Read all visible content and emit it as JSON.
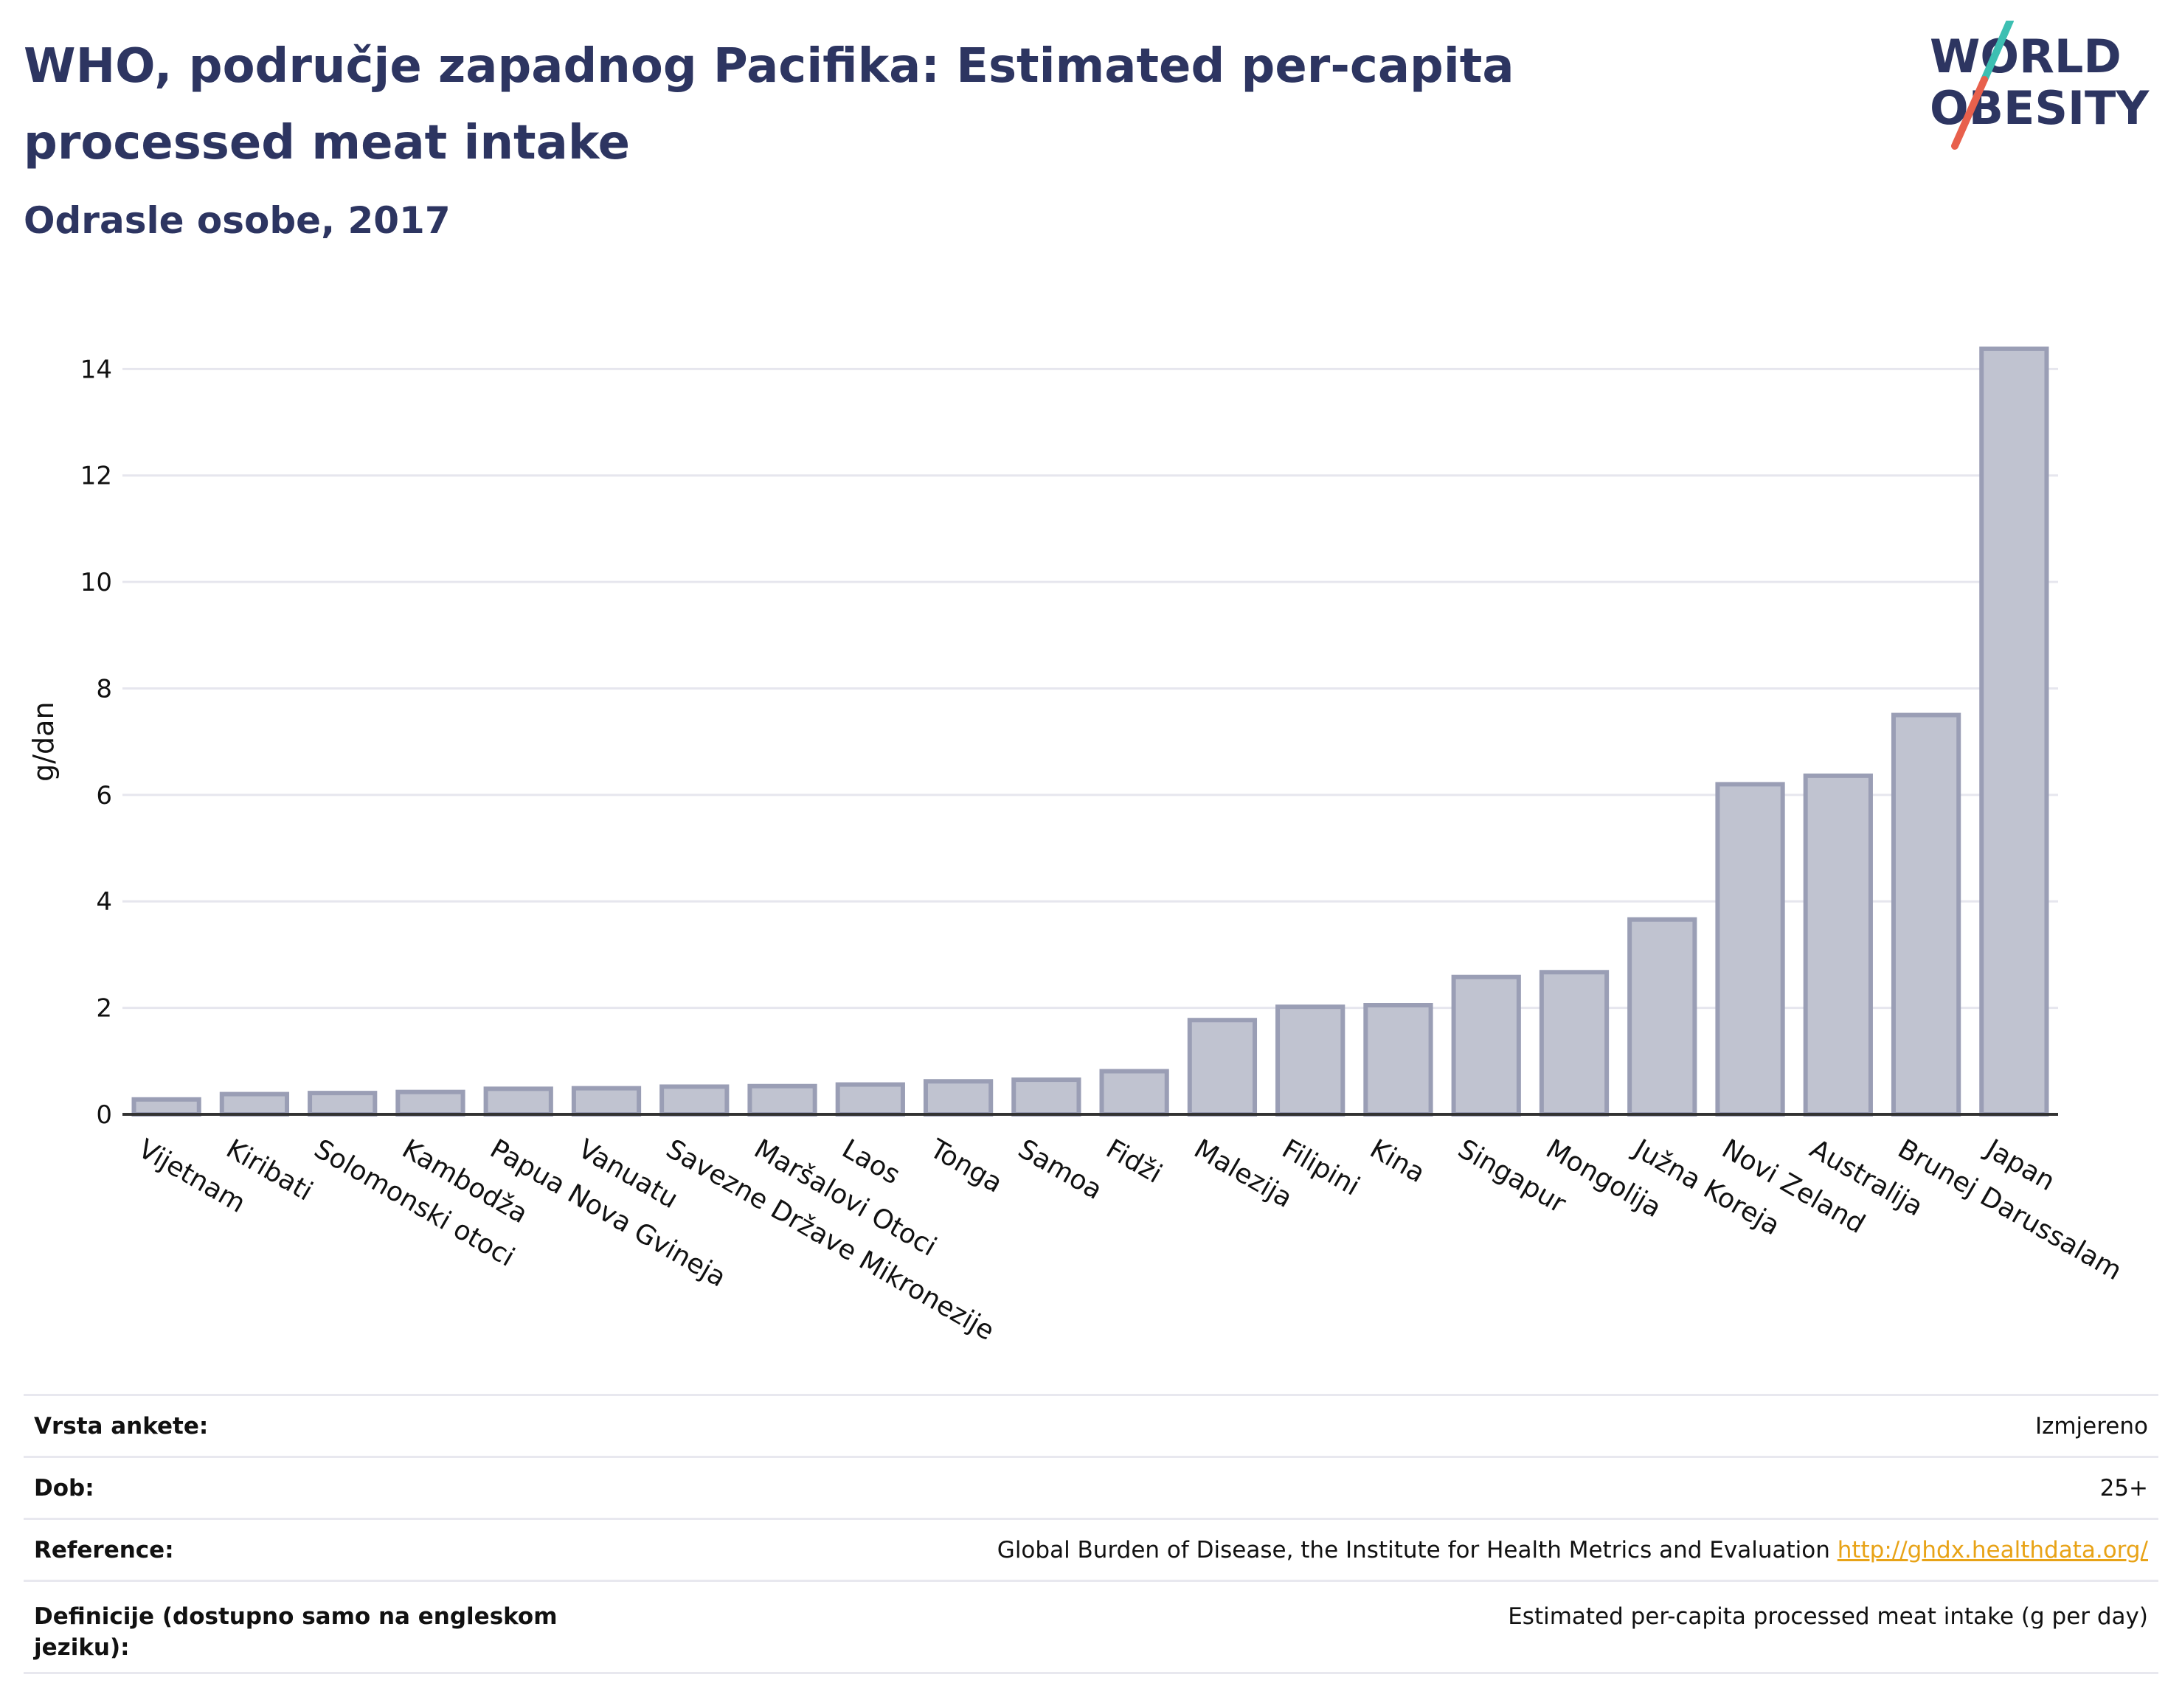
{
  "header": {
    "title": "WHO, područje zapadnog Pacifika: Estimated per-capita processed meat intake",
    "subtitle": "Odrasle osobe, 2017"
  },
  "logo": {
    "line1": "WORLD",
    "line2": "OBESITY",
    "colors": {
      "text": "#2d3561",
      "slash_top": "#3dbfb2",
      "slash_bottom": "#e8604c"
    }
  },
  "chart_data": {
    "type": "bar",
    "ylabel": "g/dan",
    "ylim": [
      0,
      14.6
    ],
    "yticks": [
      0,
      2,
      4,
      6,
      8,
      10,
      12,
      14
    ],
    "grid": true,
    "categories": [
      "Vijetnam",
      "Kiribati",
      "Solomonski otoci",
      "Kambodža",
      "Papua Nova Gvineja",
      "Vanuatu",
      "Savezne Države Mikronezije",
      "Maršalovi Otoci",
      "Laos",
      "Tonga",
      "Samoa",
      "Fidži",
      "Malezija",
      "Filipini",
      "Kina",
      "Singapur",
      "Mongolija",
      "Južna Koreja",
      "Novi Zeland",
      "Australija",
      "Brunej Darussalam",
      "Japan"
    ],
    "values": [
      0.28,
      0.38,
      0.4,
      0.42,
      0.48,
      0.49,
      0.52,
      0.53,
      0.56,
      0.62,
      0.65,
      0.81,
      1.77,
      2.02,
      2.05,
      2.58,
      2.67,
      3.66,
      6.2,
      6.36,
      7.5,
      14.38
    ],
    "colors": {
      "bar_fill": "#c0c3d0",
      "bar_stroke": "#9a9eb5",
      "axis": "#333333",
      "grid": "#e6e6ee"
    }
  },
  "meta": {
    "rows": [
      {
        "label": "Vrsta ankete:",
        "value": "Izmjereno"
      },
      {
        "label": "Dob:",
        "value": "25+"
      },
      {
        "label": "Reference:",
        "value": "Global Burden of Disease, the Institute for Health Metrics and Evaluation",
        "link": "http://ghdx.healthdata.org/"
      },
      {
        "label": "Definicije (dostupno samo na engleskom jeziku):",
        "value": "Estimated per-capita processed meat intake (g per day)"
      }
    ]
  }
}
